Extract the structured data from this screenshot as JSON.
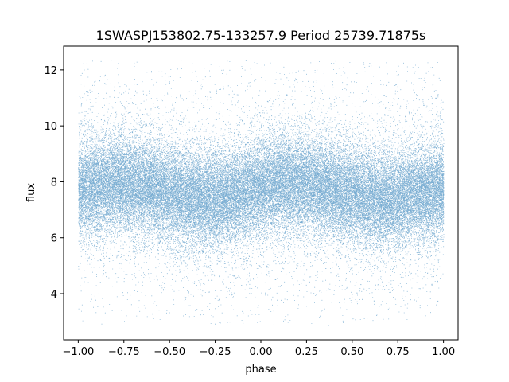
{
  "chart_data": {
    "type": "scatter",
    "title": "1SWASPJ153802.75-133257.9 Period 25739.71875s",
    "xlabel": "phase",
    "ylabel": "flux",
    "xlim": [
      -1.08,
      1.08
    ],
    "ylim": [
      2.35,
      12.85
    ],
    "xticks": [
      -1.0,
      -0.75,
      -0.5,
      -0.25,
      0.0,
      0.25,
      0.5,
      0.75,
      1.0
    ],
    "xtick_labels": [
      "−1.00",
      "−0.75",
      "−0.50",
      "−0.25",
      "0.00",
      "0.25",
      "0.50",
      "0.75",
      "1.00"
    ],
    "yticks": [
      4,
      6,
      8,
      10,
      12
    ],
    "ytick_labels": [
      "4",
      "6",
      "8",
      "10",
      "12"
    ],
    "grid": false,
    "legend": "none",
    "marker_color": "#1f77b4",
    "series": [
      {
        "x_range": [
          -1.0,
          1.0
        ],
        "y_clip": [
          2.85,
          12.35
        ],
        "trend": {
          "x": [
            -1.0,
            -0.9,
            -0.8,
            -0.7,
            -0.6,
            -0.5,
            -0.4,
            -0.3,
            -0.2,
            -0.1,
            0.0,
            0.1,
            0.2,
            0.3,
            0.4,
            0.5,
            0.6,
            0.7,
            0.8,
            0.9,
            1.0
          ],
          "y": [
            7.75,
            7.85,
            7.95,
            7.9,
            7.8,
            7.6,
            7.45,
            7.35,
            7.4,
            7.6,
            7.8,
            7.9,
            7.95,
            7.85,
            7.7,
            7.55,
            7.4,
            7.35,
            7.45,
            7.6,
            7.75
          ]
        },
        "spread_sigma": 0.85,
        "outlier_fraction": 0.12,
        "approx_point_count": 60000
      }
    ]
  }
}
